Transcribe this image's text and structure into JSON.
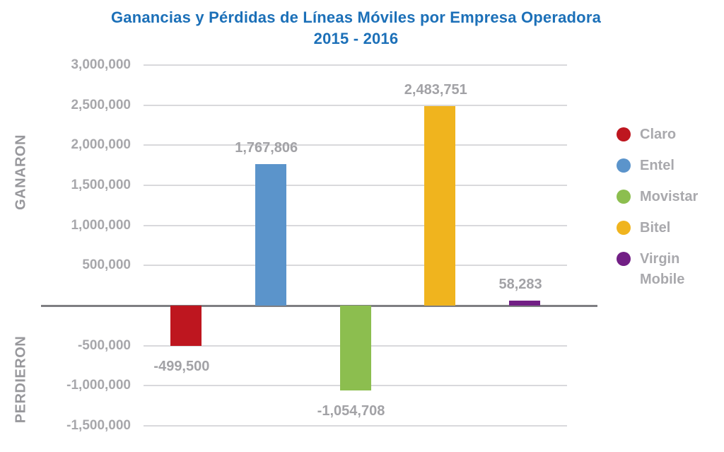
{
  "title": {
    "line1": "Ganancias y Pérdidas de Líneas Móviles por Empresa Operadora",
    "line2": "2015 - 2016"
  },
  "axis_groups": {
    "positive": "GANARON",
    "negative": "PERDIERON"
  },
  "chart_data": {
    "type": "bar",
    "title": "Ganancias y Pérdidas de Líneas Móviles por Empresa Operadora",
    "subtitle": "2015 - 2016",
    "categories": [
      "Claro",
      "Entel",
      "Movistar",
      "Bitel",
      "Virgin Mobile"
    ],
    "values": [
      -499500,
      1767806,
      -1054708,
      2483751,
      58283
    ],
    "value_labels": [
      "-499,500",
      "1,767,806",
      "-1,054,708",
      "2,483,751",
      "58,283"
    ],
    "colors": [
      "#be161f",
      "#5b94cb",
      "#8cbe4f",
      "#f0b41e",
      "#721f85"
    ],
    "y_ticks": [
      3000000,
      2500000,
      2000000,
      1500000,
      1000000,
      500000,
      0,
      -500000,
      -1000000,
      -1500000
    ],
    "y_tick_labels": [
      "3,000,000",
      "2,500,000",
      "2,000,000",
      "1,500,000",
      "1,000,000",
      "500,000",
      "",
      "-500,000",
      "-1,000,000",
      "-1,500,000"
    ],
    "ylim": [
      -1500000,
      3000000
    ],
    "grid": true,
    "legend_position": "right",
    "legend": [
      {
        "label": "Claro",
        "color": "#be161f"
      },
      {
        "label": "Entel",
        "color": "#5b94cb"
      },
      {
        "label": "Movistar",
        "color": "#8cbe4f"
      },
      {
        "label": "Bitel",
        "color": "#f0b41e"
      },
      {
        "label": "Virgin Mobile",
        "color": "#721f85"
      }
    ],
    "styling": {
      "title_color": "#1c70b8",
      "tick_color": "#a7a7ab",
      "data_label_color": "#a2a2a6",
      "gridline_color": "#d9d9dc",
      "zero_line_color": "#7e7e82"
    }
  }
}
